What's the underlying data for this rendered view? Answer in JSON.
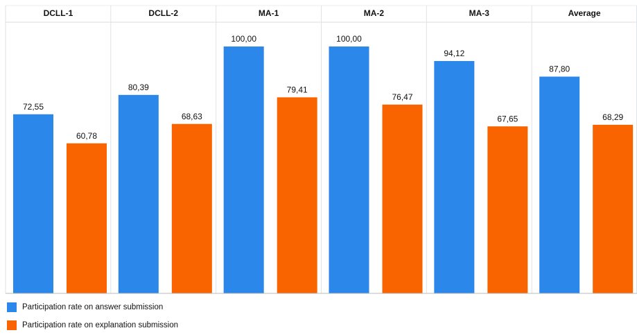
{
  "chart_data": {
    "type": "bar",
    "categories": [
      "DCLL-1",
      "DCLL-2",
      "MA-1",
      "MA-2",
      "MA-3",
      "Average"
    ],
    "series": [
      {
        "name": "Participation rate on answer submission",
        "color": "#2b87ea",
        "values": [
          72.55,
          80.39,
          100.0,
          100.0,
          94.12,
          87.8
        ],
        "value_labels": [
          "72,55",
          "80,39",
          "100,00",
          "100,00",
          "94,12",
          "87,80"
        ]
      },
      {
        "name": "Participation rate on explanation submission",
        "color": "#fa6400",
        "values": [
          60.78,
          68.63,
          79.41,
          76.47,
          67.65,
          68.29
        ],
        "value_labels": [
          "60,78",
          "68,63",
          "79,41",
          "76,47",
          "67,65",
          "68,29"
        ]
      }
    ],
    "ylim": [
      0,
      109
    ]
  }
}
